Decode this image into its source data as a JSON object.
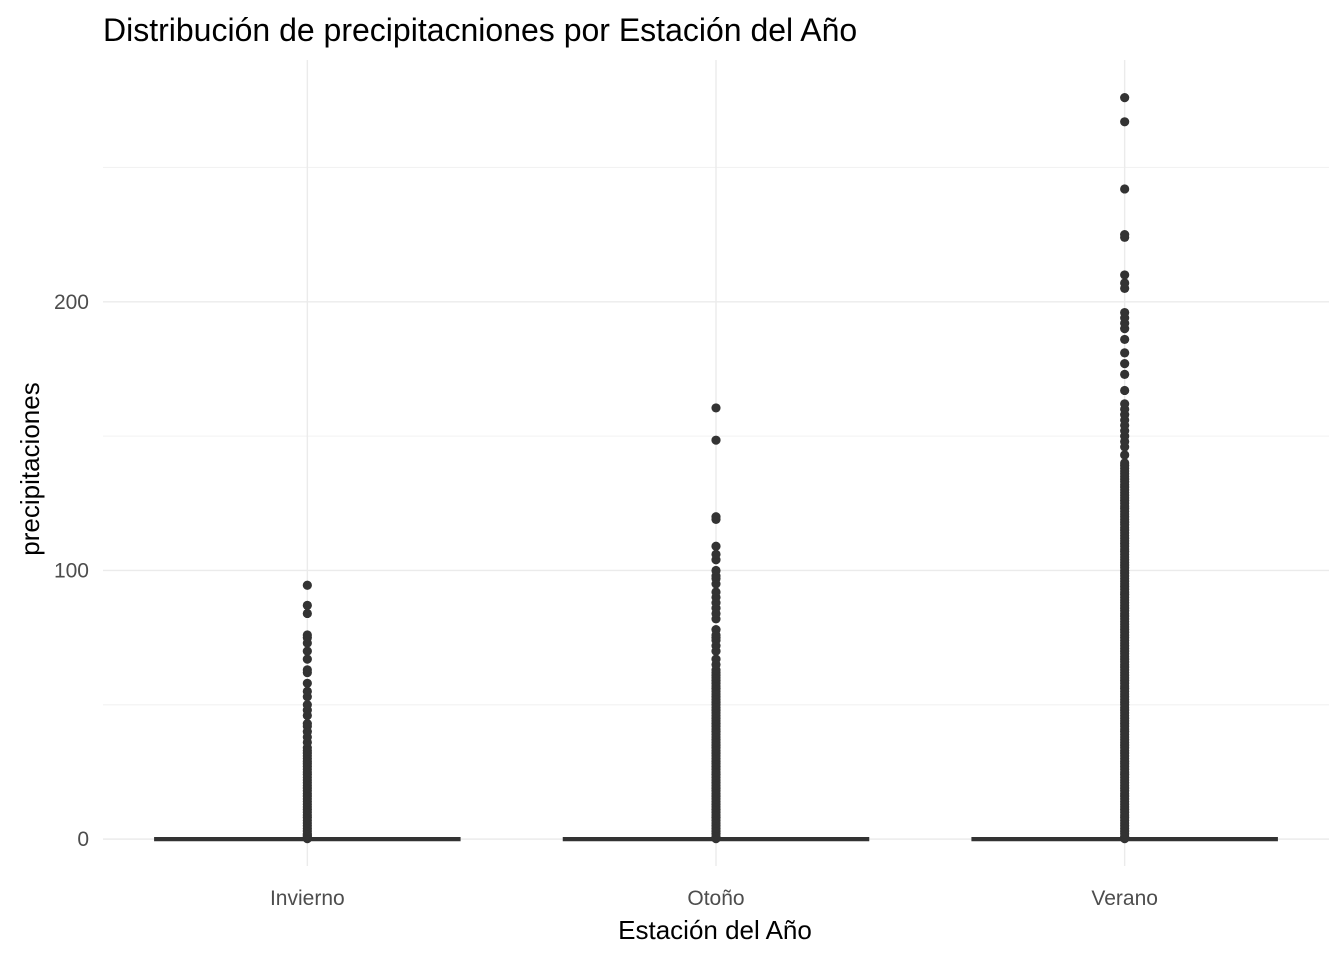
{
  "chart_data": {
    "type": "boxplot",
    "title": "Distribución de precipitacniones por Estación del Año",
    "xlabel": "Estación del Año",
    "ylabel": "precipitaciones",
    "categories": [
      "Invierno",
      "Otoño",
      "Verano"
    ],
    "ylim": [
      -10,
      290
    ],
    "yticks": [
      0,
      100,
      200
    ],
    "grid": true,
    "legend": "none",
    "colors": {
      "marks": "#333333",
      "grid": "#ebebeb",
      "text": "#4d4d4d"
    },
    "series": [
      {
        "category": "Invierno",
        "q1": 0,
        "median": 0,
        "q3": 0,
        "whisker_low": 0,
        "whisker_high": 0,
        "outliers": [
          0.2,
          0.5,
          1,
          1.5,
          2,
          3,
          4,
          5,
          6,
          7,
          8,
          9,
          10,
          11,
          12,
          13,
          14,
          15,
          16,
          17,
          18,
          19,
          20,
          21,
          22,
          23,
          24,
          25,
          26,
          27,
          28,
          29,
          30,
          31,
          32,
          33,
          34,
          36,
          38,
          40,
          42,
          43,
          46,
          48,
          50,
          53,
          55,
          58,
          62,
          63,
          67,
          70,
          73,
          75,
          76,
          84,
          87,
          94.5
        ]
      },
      {
        "category": "Otoño",
        "q1": 0,
        "median": 0,
        "q3": 0,
        "whisker_low": 0,
        "whisker_high": 0,
        "outliers": [
          0.2,
          0.5,
          1,
          2,
          3,
          4,
          5,
          6,
          7,
          8,
          9,
          10,
          11,
          12,
          13,
          14,
          15,
          16,
          17,
          18,
          19,
          20,
          21,
          22,
          23,
          24,
          25,
          26,
          27,
          28,
          29,
          30,
          31,
          32,
          33,
          34,
          35,
          36,
          37,
          38,
          39,
          40,
          41,
          42,
          43,
          44,
          45,
          46,
          47,
          48,
          49,
          50,
          51,
          52,
          53,
          54,
          55,
          56,
          57,
          58,
          59,
          60,
          61,
          62,
          63,
          65,
          67,
          70,
          72,
          74,
          75,
          76,
          78,
          82,
          84,
          86,
          88,
          90,
          92,
          95,
          97,
          98,
          100,
          104,
          106,
          109,
          119,
          120,
          148.5,
          160.5
        ]
      },
      {
        "category": "Verano",
        "q1": 0,
        "median": 0,
        "q3": 0,
        "whisker_low": 0,
        "whisker_high": 0,
        "outliers": [
          0.2,
          0.5,
          1,
          2,
          3,
          4,
          5,
          6,
          7,
          8,
          9,
          10,
          11,
          12,
          13,
          14,
          15,
          16,
          17,
          18,
          19,
          20,
          21,
          22,
          23,
          24,
          25,
          26,
          27,
          28,
          29,
          30,
          31,
          32,
          33,
          34,
          35,
          36,
          37,
          38,
          39,
          40,
          41,
          42,
          43,
          44,
          45,
          46,
          47,
          48,
          49,
          50,
          51,
          52,
          53,
          54,
          55,
          56,
          57,
          58,
          59,
          60,
          61,
          62,
          63,
          64,
          65,
          66,
          67,
          68,
          69,
          70,
          71,
          72,
          73,
          74,
          75,
          76,
          77,
          78,
          79,
          80,
          81,
          82,
          83,
          84,
          85,
          86,
          87,
          88,
          89,
          90,
          91,
          92,
          93,
          94,
          95,
          96,
          97,
          98,
          99,
          100,
          101,
          102,
          103,
          104,
          105,
          106,
          107,
          108,
          109,
          110,
          111,
          112,
          113,
          114,
          115,
          116,
          117,
          118,
          119,
          120,
          121,
          122,
          123,
          124,
          125,
          126,
          127,
          128,
          129,
          130,
          131,
          132,
          133,
          134,
          135,
          136,
          137,
          138,
          139,
          140,
          143,
          146,
          148,
          150,
          152,
          154,
          156,
          158,
          160,
          162,
          167,
          173,
          177,
          181,
          186,
          190,
          192,
          194,
          196,
          205,
          207,
          210,
          224,
          225,
          242,
          267,
          276
        ]
      }
    ]
  }
}
